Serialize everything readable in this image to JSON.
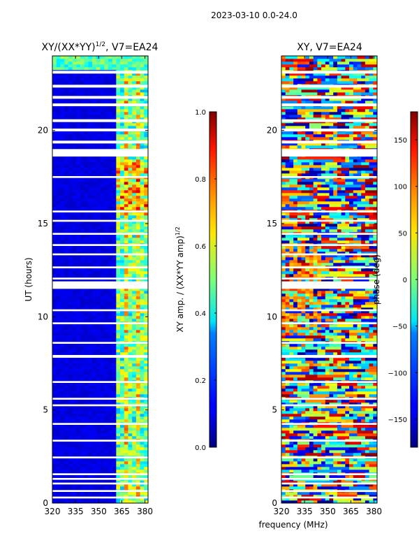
{
  "figure": {
    "suptitle": "2023-03-10 0.0-24.0",
    "xlabel_shared": "frequency (MHz)"
  },
  "chart_data": [
    {
      "type": "heatmap",
      "title": "XY/(XX*YY)",
      "title_superscript": "1/2",
      "title_suffix": ", V7=EA24",
      "ylabel": "UT (hours)",
      "xlim": [
        320,
        382
      ],
      "ylim": [
        0,
        24
      ],
      "xticks": [
        320,
        335,
        350,
        365,
        380
      ],
      "yticks": [
        0,
        5,
        10,
        15,
        20
      ],
      "colorbar": {
        "label": "XY amp. / (XX*YY amp)",
        "label_superscript": "1/2",
        "range": [
          0.0,
          1.0
        ],
        "ticks": [
          "0.0",
          "0.2",
          "0.4",
          "0.6",
          "0.8",
          "1.0"
        ],
        "colormap": "jet"
      },
      "gap_bands_hours": [
        [
          23.05,
          23.2
        ],
        [
          22.3,
          22.45
        ],
        [
          21.7,
          21.85
        ],
        [
          21.3,
          21.45
        ],
        [
          20.45,
          20.6
        ],
        [
          19.95,
          20.1
        ],
        [
          19.3,
          19.45
        ],
        [
          18.6,
          19.0
        ],
        [
          17.45,
          17.55
        ],
        [
          15.6,
          15.7
        ],
        [
          15.1,
          15.2
        ],
        [
          14.4,
          14.5
        ],
        [
          13.8,
          13.9
        ],
        [
          13.3,
          13.4
        ],
        [
          12.6,
          12.7
        ],
        [
          12.0,
          12.1
        ],
        [
          11.5,
          11.9
        ],
        [
          10.3,
          10.4
        ],
        [
          9.6,
          9.7
        ],
        [
          8.55,
          8.65
        ],
        [
          7.8,
          7.95
        ],
        [
          6.45,
          6.55
        ],
        [
          5.55,
          5.65
        ],
        [
          5.2,
          5.3
        ],
        [
          4.2,
          4.3
        ],
        [
          3.3,
          3.4
        ],
        [
          2.4,
          2.5
        ],
        [
          1.5,
          1.6
        ],
        [
          1.25,
          1.35
        ],
        [
          1.0,
          1.1
        ],
        [
          0.6,
          0.7
        ],
        [
          0.25,
          0.35
        ]
      ]
    },
    {
      "type": "heatmap",
      "title": "XY, V7=EA24",
      "xlim": [
        320,
        382
      ],
      "ylim": [
        0,
        24
      ],
      "xticks": [
        320,
        335,
        350,
        365,
        380
      ],
      "yticks": [
        0,
        5,
        10,
        15,
        20
      ],
      "colorbar": {
        "label": "phase (deg)",
        "range": [
          -180,
          180
        ],
        "ticks": [
          "−150",
          "−100",
          "−50",
          "0",
          "50",
          "100",
          "150"
        ],
        "colormap": "jet"
      },
      "gap_bands_hours": [
        [
          23.05,
          23.2
        ],
        [
          22.3,
          22.45
        ],
        [
          21.7,
          21.85
        ],
        [
          21.3,
          21.45
        ],
        [
          20.45,
          20.6
        ],
        [
          19.95,
          20.1
        ],
        [
          19.3,
          19.45
        ],
        [
          18.6,
          19.0
        ],
        [
          17.45,
          17.55
        ],
        [
          15.6,
          15.7
        ],
        [
          15.1,
          15.2
        ],
        [
          14.4,
          14.5
        ],
        [
          13.8,
          13.9
        ],
        [
          13.3,
          13.4
        ],
        [
          12.6,
          12.7
        ],
        [
          12.0,
          12.1
        ],
        [
          11.5,
          11.9
        ],
        [
          10.3,
          10.4
        ],
        [
          9.6,
          9.7
        ],
        [
          8.55,
          8.65
        ],
        [
          7.8,
          7.95
        ],
        [
          6.45,
          6.55
        ],
        [
          5.55,
          5.65
        ],
        [
          5.2,
          5.3
        ],
        [
          4.2,
          4.3
        ],
        [
          3.3,
          3.4
        ],
        [
          2.4,
          2.5
        ],
        [
          1.5,
          1.6
        ],
        [
          1.25,
          1.35
        ],
        [
          1.0,
          1.1
        ],
        [
          0.6,
          0.7
        ],
        [
          0.25,
          0.35
        ]
      ]
    }
  ]
}
